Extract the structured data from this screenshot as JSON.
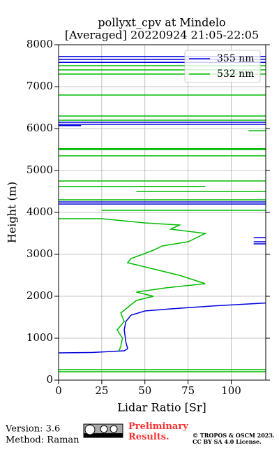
{
  "chart_data": {
    "type": "line",
    "title": "pollyxt_cpv at Mindelo",
    "subtitle": "[Averaged] 20220924 21:05-22:05",
    "x_label": "Lidar Ratio [Sr]",
    "y_label": "Height (m)",
    "xlim": [
      0,
      120
    ],
    "xticks": [
      0,
      25,
      50,
      75,
      100
    ],
    "ylim": [
      0,
      8000
    ],
    "yticks": [
      0,
      1000,
      2000,
      3000,
      4000,
      5000,
      6000,
      7000,
      8000
    ],
    "grid": true,
    "legend": "upper right",
    "series": [
      {
        "name": "355 nm",
        "color": "#0000dd",
        "x": [
          0,
          20,
          38,
          40,
          39,
          38,
          39,
          42,
          50,
          65,
          90,
          120,
          null,
          0,
          120,
          null,
          0,
          120,
          null,
          0,
          120,
          null,
          0,
          120,
          null,
          0,
          120,
          null,
          0,
          13,
          null,
          0,
          120,
          null,
          0,
          120,
          null,
          113,
          120,
          null,
          113,
          120,
          null,
          113,
          120
        ],
        "values": [
          650,
          660,
          700,
          750,
          900,
          1200,
          1400,
          1550,
          1650,
          1700,
          1770,
          1840,
          null,
          7720,
          7720,
          null,
          7650,
          7650,
          null,
          7580,
          7580,
          null,
          6150,
          6150,
          null,
          6100,
          6100,
          null,
          6070,
          6070,
          null,
          4250,
          4250,
          null,
          4200,
          4200,
          null,
          3400,
          3400,
          null,
          3300,
          3300,
          null,
          3250,
          3250
        ]
      },
      {
        "name": "532 nm",
        "color": "#00bb00",
        "x": [
          0,
          120,
          null,
          0,
          120,
          null,
          35,
          36,
          37,
          34,
          38,
          36,
          42,
          45,
          55,
          45,
          62,
          85,
          70,
          60,
          50,
          40,
          42,
          55,
          60,
          75,
          85,
          65,
          70,
          50,
          25,
          0,
          null,
          25,
          120,
          null,
          0,
          120,
          null,
          45,
          120,
          null,
          0,
          85,
          null,
          0,
          120,
          null,
          0,
          120,
          null,
          0,
          120,
          null,
          0,
          120,
          null,
          110,
          120,
          null,
          0,
          120,
          null,
          0,
          120,
          null,
          0,
          120,
          null,
          0,
          120,
          null,
          0,
          120,
          null,
          0,
          120
        ],
        "values": [
          200,
          200,
          null,
          250,
          250,
          null,
          700,
          800,
          1000,
          1200,
          1400,
          1600,
          1800,
          1900,
          2000,
          2100,
          2200,
          2300,
          2500,
          2600,
          2700,
          2800,
          2900,
          3100,
          3200,
          3300,
          3500,
          3600,
          3700,
          3750,
          3850,
          3850,
          null,
          4050,
          4050,
          null,
          4300,
          4300,
          null,
          4500,
          4500,
          null,
          4620,
          4620,
          null,
          4750,
          4750,
          null,
          5350,
          5350,
          null,
          5500,
          5500,
          null,
          5520,
          5520,
          null,
          5950,
          5950,
          null,
          6200,
          6200,
          null,
          6300,
          6300,
          null,
          6800,
          6800,
          null,
          7300,
          7300,
          null,
          7400,
          7400,
          null,
          7500,
          7500
        ]
      }
    ],
    "footer": {
      "version": "Version: 3.6",
      "method": "Method: Raman",
      "preliminary": "Preliminary Results.",
      "copyright": "© TROPOS & OSCM 2023.",
      "license": "CC BY SA 4.0 License."
    }
  }
}
